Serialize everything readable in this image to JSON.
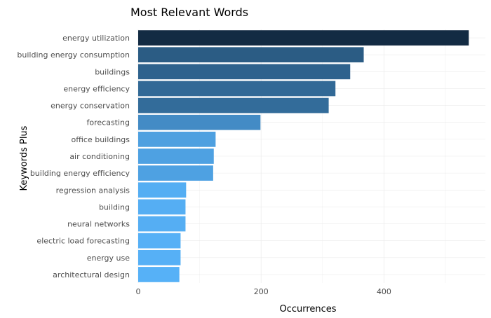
{
  "chart_data": {
    "type": "bar",
    "orientation": "horizontal",
    "title": "Most Relevant Words",
    "xlabel": "Occurrences",
    "ylabel": "Keywords Plus",
    "xlim": [
      0,
      565
    ],
    "xticks": [
      0,
      200,
      400
    ],
    "grid": true,
    "legend": "none",
    "categories": [
      "energy utilization",
      "building energy consumption",
      "buildings",
      "energy efficiency",
      "energy conservation",
      "forecasting",
      "office buildings",
      "air conditioning",
      "building energy efficiency",
      "regression analysis",
      "building",
      "neural networks",
      "electric load forecasting",
      "energy use",
      "architectural design"
    ],
    "values": [
      538,
      367,
      345,
      321,
      310,
      199,
      126,
      123,
      122,
      78,
      77,
      77,
      69,
      69,
      67
    ],
    "colors": {
      "low": "#56b1f7",
      "high": "#132b43",
      "grid": "#ebebeb",
      "text": "#4d4d4d",
      "title": "#000000"
    }
  }
}
